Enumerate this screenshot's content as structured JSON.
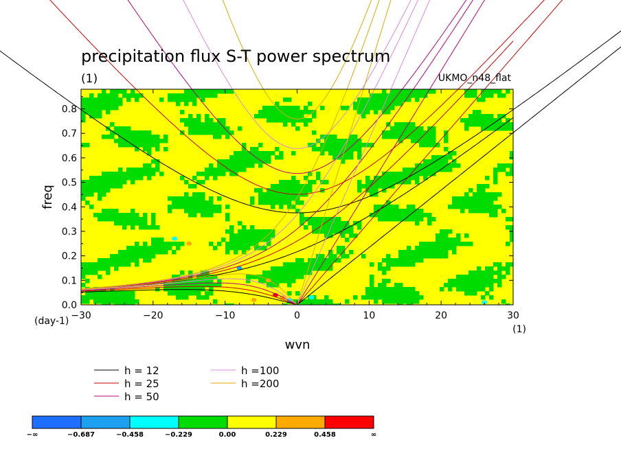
{
  "chart_data": {
    "type": "heatmap",
    "title": "precipitation flux S-T power spectrum",
    "subtitle_left": "(1)",
    "subtitle_right": "UKMO_n48_flat",
    "xlabel": "wvn",
    "ylabel": "freq",
    "x_unit": "(1)",
    "y_unit": "(day-1)",
    "xlim": [
      -30,
      30
    ],
    "ylim": [
      0.0,
      0.88
    ],
    "x_ticks": [
      -30,
      -20,
      -10,
      0,
      10,
      20,
      30
    ],
    "x_tick_labels": [
      "−30",
      "−20",
      "−10",
      "0",
      "10",
      "20",
      "30"
    ],
    "y_ticks": [
      0.0,
      0.1,
      0.2,
      0.3,
      0.4,
      0.5,
      0.6,
      0.7,
      0.8
    ],
    "y_tick_labels": [
      "0.0",
      "0.1",
      "0.2",
      "0.3",
      "0.4",
      "0.5",
      "0.6",
      "0.7",
      "0.8"
    ],
    "dispersion_curves": [
      {
        "label": "h = 12",
        "h": 12,
        "color": "#000000"
      },
      {
        "label": "h = 25",
        "h": 25,
        "color": "#cc0000"
      },
      {
        "label": "h = 50",
        "h": 50,
        "color": "#bb0077"
      },
      {
        "label": "h =100",
        "h": 100,
        "color": "#dd88dd"
      },
      {
        "label": "h =200",
        "h": 200,
        "color": "#ddaa00"
      }
    ],
    "colorbar": {
      "boundaries": [
        "−∞",
        "−0.687",
        "−0.458",
        "−0.229",
        "0.00",
        "0.229",
        "0.458",
        "∞"
      ],
      "colors": [
        "#1e6eff",
        "#1ea0f0",
        "#00ffff",
        "#00dc00",
        "#ffff00",
        "#ffaa00",
        "#ff0000"
      ]
    },
    "field_colors": {
      "dominant": "#ffff00",
      "secondary": "#00dc00"
    }
  }
}
